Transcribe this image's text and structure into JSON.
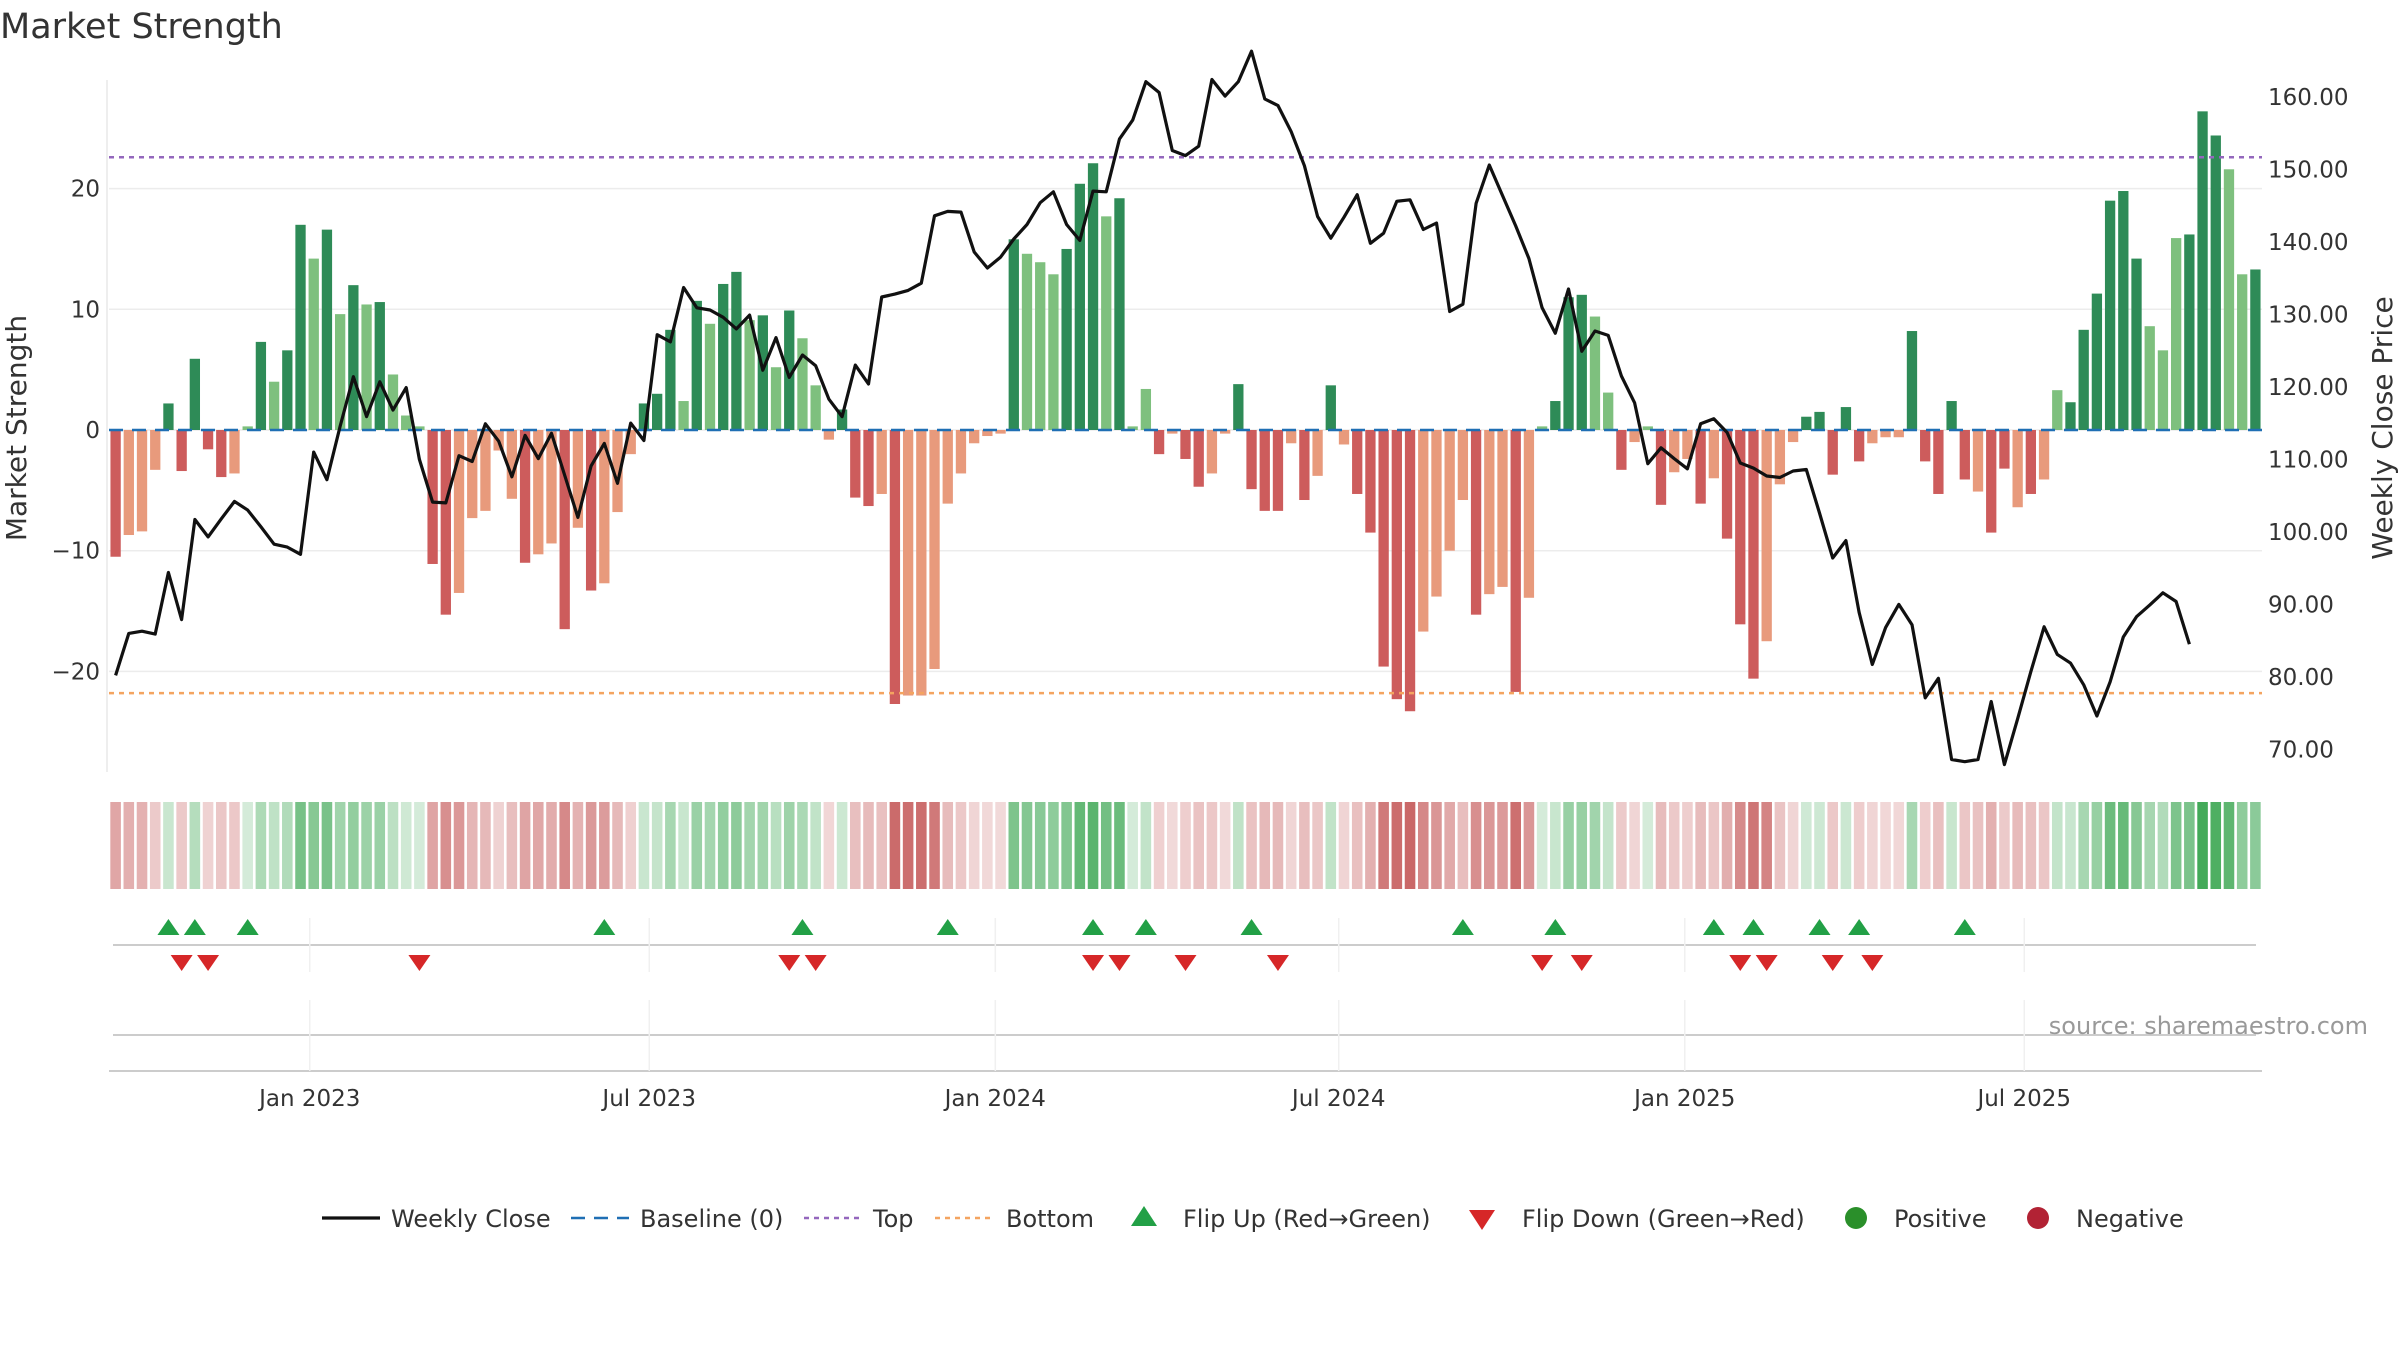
{
  "chart_data": {
    "type": "bar",
    "title": "Market Strength",
    "ylabel_left": "Market Strength",
    "ylabel_right": "Weekly Close Price",
    "y_left_range": [
      -28.5,
      28.5
    ],
    "y_left_ticks": [
      20,
      10,
      0,
      -10,
      -20
    ],
    "y_left_tick_labels": [
      "20",
      "10",
      "0",
      "−10",
      "−20"
    ],
    "y_right_range": [
      66.6,
      161.5
    ],
    "y_right_ticks": [
      160,
      150,
      140,
      130,
      120,
      110,
      100,
      90,
      80,
      70
    ],
    "y_right_tick_labels": [
      "160.00",
      "150.00",
      "140.00",
      "130.00",
      "120.00",
      "110.00",
      "100.00",
      "90.00",
      "80.00",
      "70.00"
    ],
    "x_tick_labels": [
      "Jan 2023",
      "Jul 2023",
      "Jan 2024",
      "Jul 2024",
      "Jan 2025",
      "Jul 2025"
    ],
    "x_tick_week_index": [
      14.7,
      40.4,
      66.6,
      92.6,
      118.8,
      144.5
    ],
    "top_line": 22.6,
    "bottom_line": -21.8,
    "strength_values": [
      -10.5,
      -8.7,
      -8.4,
      -3.3,
      2.2,
      -3.4,
      5.9,
      -1.6,
      -3.9,
      -3.6,
      0.3,
      7.3,
      4.0,
      6.6,
      17.0,
      14.2,
      16.6,
      9.6,
      12.0,
      10.4,
      10.6,
      4.6,
      1.2,
      0.3,
      -11.1,
      -15.3,
      -13.5,
      -7.3,
      -6.7,
      -1.7,
      -5.7,
      -11.0,
      -10.3,
      -9.4,
      -16.5,
      -8.1,
      -13.3,
      -12.7,
      -6.8,
      -2.0,
      2.2,
      3.0,
      8.3,
      2.4,
      10.7,
      8.8,
      12.1,
      13.1,
      9.1,
      9.5,
      5.2,
      9.9,
      7.6,
      3.7,
      -0.8,
      1.7,
      -5.6,
      -6.3,
      -5.3,
      -22.7,
      -22.0,
      -22.0,
      -19.8,
      -6.1,
      -3.6,
      -1.1,
      -0.5,
      -0.3,
      15.8,
      14.6,
      13.9,
      12.9,
      15.0,
      20.4,
      22.1,
      17.7,
      19.2,
      0.3,
      3.4,
      -2.0,
      -0.3,
      -2.4,
      -4.7,
      -3.6,
      -0.3,
      3.8,
      -4.9,
      -6.7,
      -6.7,
      -1.1,
      -5.8,
      -3.8,
      3.7,
      -1.2,
      -5.3,
      -8.5,
      -19.6,
      -22.3,
      -23.3,
      -16.7,
      -13.8,
      -10.0,
      -5.8,
      -15.3,
      -13.6,
      -13.0,
      -21.7,
      -13.9,
      0.3,
      2.4,
      11.0,
      11.2,
      9.4,
      3.1,
      -3.3,
      -1.0,
      0.3,
      -6.2,
      -3.5,
      -2.4,
      -6.1,
      -4.0,
      -9.0,
      -16.1,
      -20.6,
      -17.5,
      -4.5,
      -1.0,
      1.1,
      1.5,
      -3.7,
      1.9,
      -2.6,
      -1.1,
      -0.6,
      -0.6,
      8.2,
      -2.6,
      -5.3,
      2.4,
      -4.1,
      -5.1,
      -8.5,
      -3.2,
      -6.4,
      -5.3,
      -4.1,
      3.3,
      2.3,
      8.3,
      11.3,
      19.0,
      19.8,
      14.2,
      8.6,
      6.6,
      15.9,
      16.2,
      26.4,
      24.4,
      21.6,
      12.9,
      13.3
    ],
    "strength_shades": [
      1,
      0,
      0,
      0,
      1,
      1,
      1,
      1,
      1,
      0,
      0,
      1,
      0,
      1,
      1,
      0,
      1,
      0,
      1,
      0,
      1,
      0,
      0,
      0,
      1,
      1,
      0,
      0,
      0,
      0,
      0,
      1,
      0,
      0,
      1,
      0,
      1,
      0,
      0,
      0,
      1,
      1,
      1,
      0,
      1,
      0,
      1,
      1,
      0,
      1,
      0,
      1,
      0,
      0,
      0,
      1,
      1,
      1,
      0,
      1,
      0,
      0,
      0,
      0,
      0,
      0,
      0,
      0,
      1,
      0,
      0,
      0,
      1,
      1,
      1,
      0,
      1,
      0,
      0,
      1,
      0,
      1,
      1,
      0,
      0,
      1,
      1,
      1,
      1,
      0,
      1,
      0,
      1,
      0,
      1,
      1,
      1,
      1,
      1,
      0,
      0,
      0,
      0,
      1,
      0,
      0,
      1,
      0,
      0,
      1,
      1,
      1,
      0,
      0,
      1,
      0,
      0,
      1,
      0,
      0,
      1,
      0,
      1,
      1,
      1,
      0,
      0,
      0,
      1,
      1,
      1,
      1,
      1,
      0,
      0,
      0,
      1,
      1,
      1,
      1,
      1,
      0,
      1,
      1,
      0,
      1,
      0,
      0,
      1,
      1,
      1,
      1,
      1,
      1,
      0,
      0,
      0,
      1,
      1,
      1,
      0,
      0,
      1,
      1
    ],
    "weekly_close": [
      80.2,
      86.0,
      86.3,
      85.9,
      94.4,
      87.9,
      101.7,
      99.3,
      101.8,
      104.2,
      103.0,
      100.7,
      98.3,
      97.9,
      96.9,
      111.0,
      107.2,
      114.6,
      121.4,
      115.9,
      120.7,
      116.8,
      119.9,
      110.0,
      104.1,
      104.0,
      110.5,
      109.7,
      114.9,
      112.5,
      107.6,
      113.3,
      110.1,
      113.6,
      107.8,
      102.0,
      109.1,
      112.2,
      106.7,
      115.0,
      112.6,
      127.2,
      126.2,
      133.7,
      130.9,
      130.6,
      129.6,
      128.0,
      129.9,
      122.3,
      126.8,
      121.3,
      124.4,
      122.9,
      118.3,
      115.9,
      123.0,
      120.4,
      132.4,
      132.8,
      133.3,
      134.3,
      143.6,
      144.2,
      144.1,
      138.6,
      136.4,
      137.9,
      140.4,
      142.4,
      145.4,
      146.9,
      142.4,
      140.2,
      147.0,
      146.9,
      154.2,
      156.8,
      162.1,
      160.6,
      152.6,
      151.9,
      153.2,
      162.4,
      160.1,
      162.1,
      166.3,
      159.7,
      158.8,
      155.2,
      150.5,
      143.5,
      140.5,
      143.4,
      146.5,
      139.8,
      141.2,
      145.6,
      145.8,
      141.7,
      142.6,
      130.4,
      131.4,
      145.3,
      150.6,
      146.4,
      142.2,
      137.7,
      130.9,
      127.4,
      133.5,
      124.9,
      127.7,
      127.1,
      121.5,
      117.8,
      109.4,
      111.6,
      110.1,
      108.7,
      114.9,
      115.6,
      113.7,
      109.5,
      108.8,
      107.7,
      107.5,
      108.4,
      108.6,
      102.6,
      96.4,
      98.8,
      88.9,
      81.7,
      86.8,
      90.0,
      87.2,
      77.1,
      79.8,
      68.6,
      68.3,
      68.6,
      76.6,
      67.9,
      74.2,
      80.7,
      86.9,
      83.1,
      81.9,
      78.9,
      74.6,
      79.3,
      85.5,
      88.3,
      89.9,
      91.6,
      90.4,
      84.5
    ],
    "flip_up_weeks": [
      4,
      6,
      10,
      37,
      52,
      63,
      74,
      78,
      86,
      102,
      109,
      121,
      124,
      129,
      132,
      140
    ],
    "flip_down_weeks": [
      5,
      7,
      23,
      51,
      53,
      74,
      76,
      81,
      88,
      108,
      111,
      123,
      125,
      130,
      133
    ],
    "legend": [
      "Weekly Close",
      "Baseline (0)",
      "Top",
      "Bottom",
      "Flip Up (Red→Green)",
      "Flip Down (Green→Red)",
      "Positive",
      "Negative"
    ],
    "annotation": "source: sharemaestro.com",
    "colors": {
      "pos_dark": "#2e8b57",
      "pos_light": "#7ec07e",
      "neg_dark": "#cd5c5c",
      "neg_light": "#e89a7c",
      "close": "#111111",
      "baseline": "#1f6fb4",
      "top": "#9467bd",
      "bottom": "#f4a460",
      "flip_up": "#22a046",
      "flip_down": "#d62728",
      "positive_dot": "#2a8f2a",
      "negative_dot": "#b22234"
    }
  }
}
